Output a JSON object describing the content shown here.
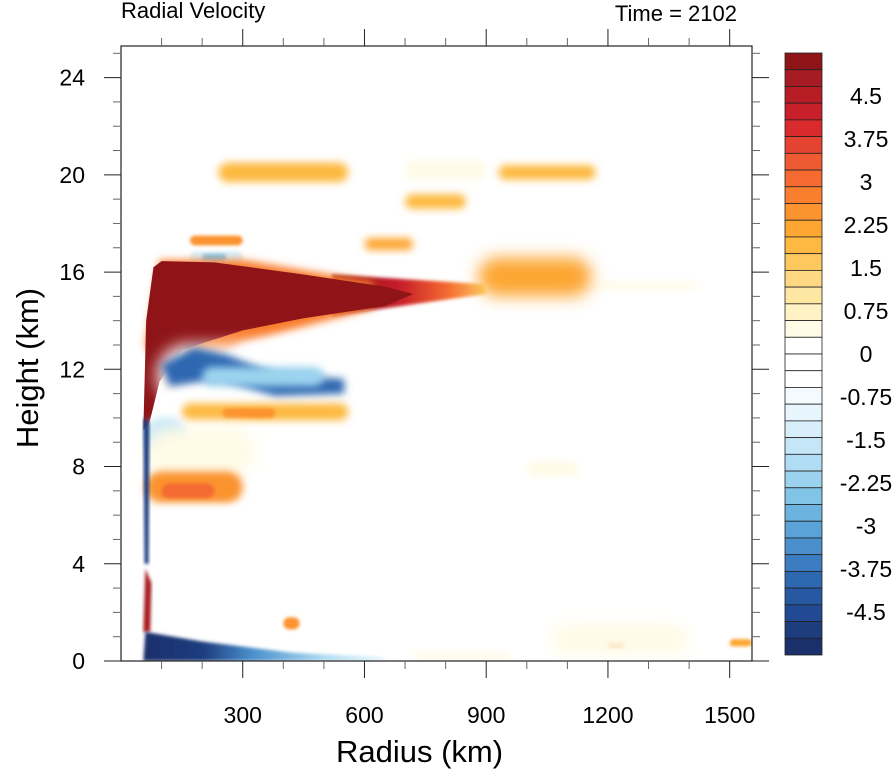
{
  "chart_data": {
    "type": "heatmap",
    "title": "Radial Velocity",
    "subtitle": "Time = 2102",
    "xlabel": "Radius (km)",
    "ylabel": "Height (km)",
    "xlim": [
      0,
      1555
    ],
    "ylim": [
      0,
      25.3
    ],
    "x_ticks": [
      300,
      600,
      900,
      1200,
      1500
    ],
    "x_tick_labels": [
      "300",
      "600",
      "900",
      "1200",
      "1500"
    ],
    "x_minor_step": 100,
    "y_ticks": [
      0,
      4,
      8,
      12,
      16,
      20,
      24
    ],
    "y_tick_labels": [
      "0",
      "4",
      "8",
      "12",
      "16",
      "20",
      "24"
    ],
    "y_minor_step": 1,
    "grid": false,
    "colorbar": {
      "placement": "right",
      "levels_min": -5.25,
      "levels_max": 5.25,
      "level_step": 0.375,
      "tick_labels": [
        "4.5",
        "3.75",
        "3",
        "2.25",
        "1.5",
        "0.75",
        "0",
        "-0.75",
        "-1.5",
        "-2.25",
        "-3",
        "-3.75",
        "-4.5"
      ],
      "tick_values": [
        4.5,
        3.75,
        3,
        2.25,
        1.5,
        0.75,
        0,
        -0.75,
        -1.5,
        -2.25,
        -3,
        -3.75,
        -4.5
      ],
      "colors": [
        "#8e1418",
        "#a71b22",
        "#b71d25",
        "#c8202a",
        "#d92b2e",
        "#e54331",
        "#ee5a31",
        "#f46a30",
        "#f97e2e",
        "#fb932f",
        "#fda632",
        "#fdb941",
        "#fdc95e",
        "#fed882",
        "#fee7a3",
        "#fff2c4",
        "#fffbe6",
        "#ffffff",
        "#ffffff",
        "#ffffff",
        "#f4fafe",
        "#e7f5fc",
        "#d8eff9",
        "#c4e6f7",
        "#b0ddf3",
        "#9bd3ef",
        "#82c3e8",
        "#6db3e0",
        "#5aa2d7",
        "#4a8fcc",
        "#3c7cc0",
        "#2e68b1",
        "#2758a2",
        "#224993",
        "#1e3d7f",
        "#1a306b"
      ]
    },
    "features": [
      {
        "name": "upper-level outflow jet",
        "value": 5.25,
        "r": [
          60,
          900
        ],
        "z": [
          13.5,
          16.3
        ]
      },
      {
        "name": "inflow below outflow",
        "value": -4.2,
        "r": [
          120,
          560
        ],
        "z": [
          10.8,
          12.8
        ]
      },
      {
        "name": "thin inflow above outflow",
        "value": -4.5,
        "r": [
          170,
          250
        ],
        "z": [
          16.5,
          16.7
        ]
      },
      {
        "name": "boundary layer inflow",
        "value": -5.25,
        "r": [
          55,
          600
        ],
        "z": [
          0,
          1.2
        ]
      },
      {
        "name": "weak outflow aloft",
        "value": 1.5,
        "r": [
          900,
          1150
        ],
        "z": [
          15.2,
          16.5
        ]
      },
      {
        "name": "mid-level outflow",
        "value": 2.25,
        "r": [
          60,
          250
        ],
        "z": [
          6.8,
          7.8
        ]
      },
      {
        "name": "mid-level inflow",
        "value": -3.75,
        "r": [
          55,
          110
        ],
        "z": [
          3.5,
          9.5
        ]
      },
      {
        "name": "low-level outflow",
        "value": 5.0,
        "r": [
          55,
          80
        ],
        "z": [
          1.5,
          3.8
        ]
      }
    ]
  }
}
